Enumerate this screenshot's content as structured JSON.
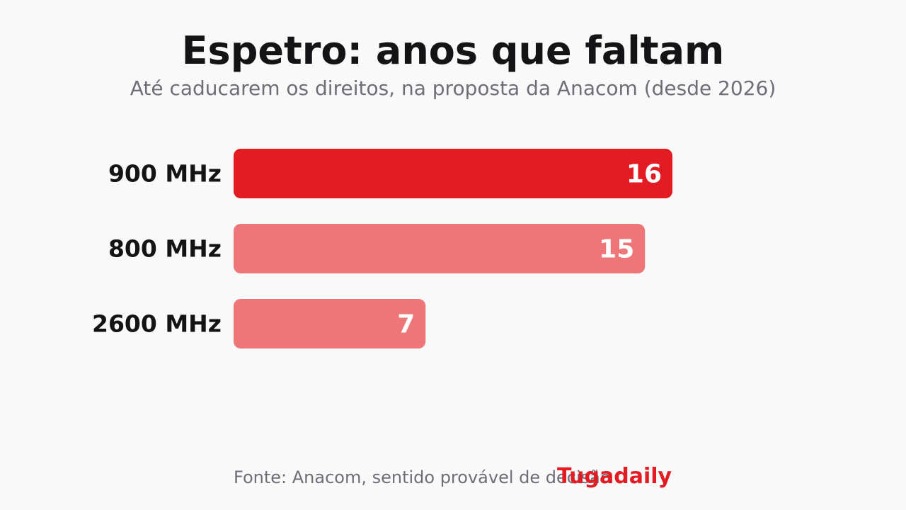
{
  "header": {
    "title": "Espetro: anos que faltam",
    "subtitle": "Até caducarem os direitos, na proposta da Anacom (desde 2026)"
  },
  "footer": {
    "source": "Fonte: Anacom, sentido provável de decisão",
    "brand": "Tugadaily"
  },
  "colors": {
    "highlight": "#e31b23",
    "muted": "#ee7679",
    "brand": "#e31b23"
  },
  "chart_data": {
    "type": "bar",
    "orientation": "horizontal",
    "categories": [
      "900 MHz",
      "800 MHz",
      "2600 MHz"
    ],
    "values": [
      16,
      15,
      7
    ],
    "highlighted": [
      true,
      false,
      false
    ],
    "xlim": [
      0,
      16
    ],
    "grid": false,
    "legend": "none"
  }
}
